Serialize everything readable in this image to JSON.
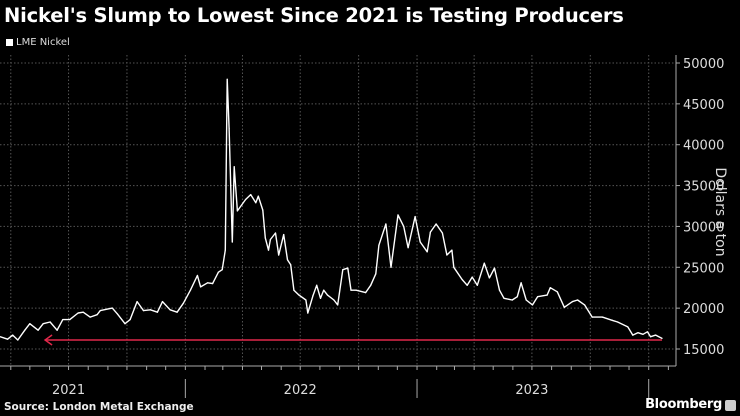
{
  "title": "Nickel's Slump to Lowest Since 2021 is Testing Producers",
  "source": "Source: London Metal Exchange",
  "brand": "Bloomberg",
  "colors": {
    "background": "#000000",
    "series": "#ffffff",
    "reference_line": "#e0284a",
    "grid": "#555555"
  },
  "chart_data": {
    "type": "line",
    "title": "Nickel's Slump to Lowest Since 2021 is Testing Producers",
    "ylabel": "Dollars a ton",
    "xlabel": "",
    "ylim": [
      15000,
      50000
    ],
    "xlim": [
      "2021-03-15",
      "2024-02-13"
    ],
    "y_ticks": [
      15000,
      20000,
      25000,
      30000,
      35000,
      40000,
      45000,
      50000
    ],
    "y_tick_labels": [
      "15000",
      "20000",
      "25000",
      "30000",
      "35000",
      "40000",
      "45000",
      "50000"
    ],
    "y_axis_side": "right",
    "x_tick_labels": [
      {
        "label": "2021",
        "date": "2021-07-01"
      },
      {
        "label": "2022",
        "date": "2022-07-01"
      },
      {
        "label": "2023",
        "date": "2023-07-01"
      }
    ],
    "year_boundaries": [
      "2022-01-01",
      "2023-01-01",
      "2024-01-01"
    ],
    "grid": true,
    "legend_position": "top-left",
    "series": [
      {
        "name": "LME Nickel",
        "color": "#ffffff",
        "points": [
          [
            "2021-03-15",
            16500
          ],
          [
            "2021-03-27",
            16200
          ],
          [
            "2021-04-04",
            16700
          ],
          [
            "2021-04-12",
            16100
          ],
          [
            "2021-04-23",
            17300
          ],
          [
            "2021-05-01",
            18100
          ],
          [
            "2021-05-14",
            17300
          ],
          [
            "2021-05-22",
            18100
          ],
          [
            "2021-06-02",
            18300
          ],
          [
            "2021-06-13",
            17300
          ],
          [
            "2021-06-22",
            18600
          ],
          [
            "2021-07-03",
            18600
          ],
          [
            "2021-07-16",
            19400
          ],
          [
            "2021-07-24",
            19500
          ],
          [
            "2021-08-04",
            18900
          ],
          [
            "2021-08-15",
            19200
          ],
          [
            "2021-08-20",
            19700
          ],
          [
            "2021-09-08",
            20000
          ],
          [
            "2021-09-16",
            19300
          ],
          [
            "2021-09-28",
            18100
          ],
          [
            "2021-10-06",
            18600
          ],
          [
            "2021-10-17",
            20800
          ],
          [
            "2021-10-27",
            19700
          ],
          [
            "2021-11-07",
            19800
          ],
          [
            "2021-11-18",
            19500
          ],
          [
            "2021-11-26",
            20800
          ],
          [
            "2021-12-08",
            19800
          ],
          [
            "2021-12-19",
            19500
          ],
          [
            "2021-12-29",
            20600
          ],
          [
            "2022-01-09",
            22200
          ],
          [
            "2022-01-20",
            24000
          ],
          [
            "2022-01-25",
            22600
          ],
          [
            "2022-02-05",
            23100
          ],
          [
            "2022-02-13",
            23000
          ],
          [
            "2022-02-22",
            24400
          ],
          [
            "2022-02-28",
            24700
          ],
          [
            "2022-03-05",
            27100
          ],
          [
            "2022-03-08",
            48000
          ],
          [
            "2022-03-11",
            42000
          ],
          [
            "2022-03-16",
            28100
          ],
          [
            "2022-03-19",
            37300
          ],
          [
            "2022-03-24",
            31900
          ],
          [
            "2022-04-06",
            33300
          ],
          [
            "2022-04-14",
            33900
          ],
          [
            "2022-04-22",
            32900
          ],
          [
            "2022-04-26",
            33700
          ],
          [
            "2022-05-03",
            32000
          ],
          [
            "2022-05-07",
            28600
          ],
          [
            "2022-05-12",
            27100
          ],
          [
            "2022-05-15",
            28400
          ],
          [
            "2022-05-23",
            29200
          ],
          [
            "2022-05-28",
            26500
          ],
          [
            "2022-06-05",
            29000
          ],
          [
            "2022-06-11",
            25900
          ],
          [
            "2022-06-16",
            25300
          ],
          [
            "2022-06-21",
            22200
          ],
          [
            "2022-06-29",
            21600
          ],
          [
            "2022-07-10",
            21000
          ],
          [
            "2022-07-13",
            19400
          ],
          [
            "2022-07-21",
            21500
          ],
          [
            "2022-07-27",
            22800
          ],
          [
            "2022-08-02",
            21200
          ],
          [
            "2022-08-07",
            22200
          ],
          [
            "2022-08-13",
            21600
          ],
          [
            "2022-08-23",
            21000
          ],
          [
            "2022-08-29",
            20400
          ],
          [
            "2022-09-06",
            24700
          ],
          [
            "2022-09-14",
            24900
          ],
          [
            "2022-09-19",
            22200
          ],
          [
            "2022-09-27",
            22200
          ],
          [
            "2022-10-12",
            21900
          ],
          [
            "2022-10-20",
            22800
          ],
          [
            "2022-10-28",
            24200
          ],
          [
            "2022-11-02",
            27700
          ],
          [
            "2022-11-13",
            30300
          ],
          [
            "2022-11-21",
            25000
          ],
          [
            "2022-12-02",
            31400
          ],
          [
            "2022-12-11",
            30000
          ],
          [
            "2022-12-18",
            27400
          ],
          [
            "2022-12-29",
            31200
          ],
          [
            "2023-01-06",
            28100
          ],
          [
            "2023-01-17",
            26900
          ],
          [
            "2023-01-22",
            29300
          ],
          [
            "2023-01-31",
            30300
          ],
          [
            "2023-02-10",
            29200
          ],
          [
            "2023-02-17",
            26500
          ],
          [
            "2023-02-25",
            27100
          ],
          [
            "2023-02-28",
            25000
          ],
          [
            "2023-03-13",
            23500
          ],
          [
            "2023-03-21",
            22800
          ],
          [
            "2023-03-29",
            23800
          ],
          [
            "2023-04-06",
            22800
          ],
          [
            "2023-04-17",
            25500
          ],
          [
            "2023-04-25",
            23700
          ],
          [
            "2023-05-03",
            24900
          ],
          [
            "2023-05-11",
            22200
          ],
          [
            "2023-05-18",
            21200
          ],
          [
            "2023-05-31",
            21000
          ],
          [
            "2023-06-08",
            21400
          ],
          [
            "2023-06-14",
            23100
          ],
          [
            "2023-06-22",
            21000
          ],
          [
            "2023-07-02",
            20400
          ],
          [
            "2023-07-10",
            21400
          ],
          [
            "2023-07-25",
            21600
          ],
          [
            "2023-07-30",
            22500
          ],
          [
            "2023-08-10",
            22000
          ],
          [
            "2023-08-21",
            20100
          ],
          [
            "2023-09-03",
            20800
          ],
          [
            "2023-09-11",
            21000
          ],
          [
            "2023-09-22",
            20400
          ],
          [
            "2023-10-04",
            18900
          ],
          [
            "2023-10-20",
            18900
          ],
          [
            "2023-11-05",
            18500
          ],
          [
            "2023-11-13",
            18300
          ],
          [
            "2023-11-29",
            17700
          ],
          [
            "2023-12-07",
            16700
          ],
          [
            "2023-12-15",
            17000
          ],
          [
            "2023-12-23",
            16800
          ],
          [
            "2023-12-30",
            17100
          ],
          [
            "2024-01-04",
            16500
          ],
          [
            "2024-01-12",
            16700
          ],
          [
            "2024-01-22",
            16300
          ]
        ]
      }
    ],
    "annotations": [
      {
        "type": "arrow",
        "value": 16100,
        "from": "2024-01-22",
        "to": "2021-05-25",
        "color": "#e0284a",
        "direction": "left"
      }
    ]
  }
}
